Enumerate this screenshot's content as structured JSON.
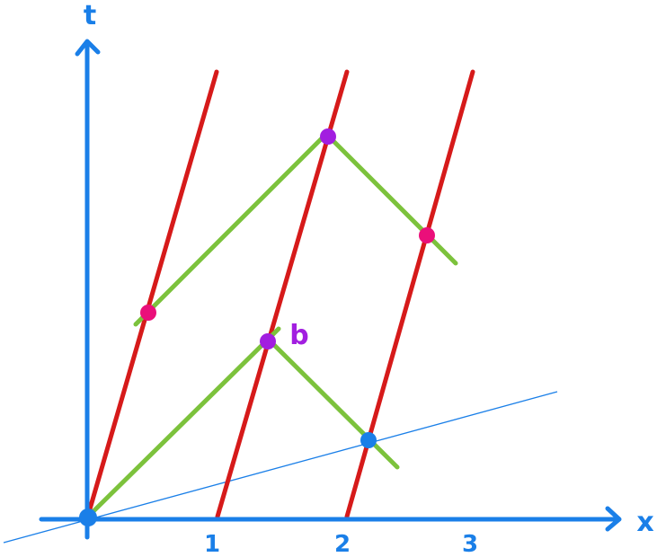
{
  "axes": {
    "x_label": "x",
    "t_label": "t",
    "tick_labels": [
      "1",
      "2",
      "3"
    ]
  },
  "annotations": {
    "event_label": "b"
  },
  "colors": {
    "axis": "#1a7fe8",
    "worldline": "#d61a1a",
    "light_ray": "#7cc23c",
    "event_purple": "#a21ee0",
    "event_pink": "#ea0f7a",
    "event_blue": "#1a7fe8",
    "text_purple": "#a21ee0"
  }
}
